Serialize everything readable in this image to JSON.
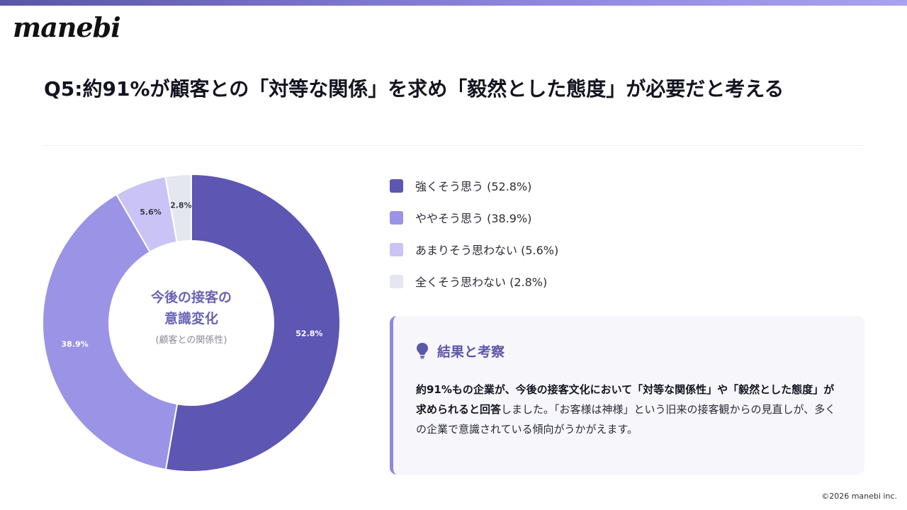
{
  "brand": {
    "logo_text": "manebi",
    "accent": "#5b55a8"
  },
  "page": {
    "title": "Q5:約91%が顧客との「対等な関係」を求め「毅然とした態度」が必要だと考える"
  },
  "chart_data": {
    "type": "pie",
    "donut": true,
    "categories": [
      "強くそう思う",
      "ややそう思う",
      "あまりそう思わない",
      "全くそう思わない"
    ],
    "values": [
      52.8,
      38.9,
      5.6,
      2.8
    ],
    "unit": "%",
    "data_labels": [
      "52.8%",
      "38.9%",
      "5.6%",
      "2.8%"
    ],
    "colors": [
      "#5d56b3",
      "#9b93e6",
      "#c9c4f5",
      "#e4e7ef"
    ],
    "center_title_lines": [
      "今後の接客の",
      "意識変化"
    ],
    "center_subtitle": "(顧客との関係性)",
    "legend_position": "right",
    "legend": [
      "強くそう思う (52.8%)",
      "ややそう思う (38.9%)",
      "あまりそう思わない (5.6%)",
      "全くそう思わない (2.8%)"
    ]
  },
  "insight": {
    "icon": "lightbulb-icon",
    "title": "結果と考察",
    "body_bold": "約91%もの企業が、今後の接客文化において「対等な関係性」や「毅然とした態度」が求められると回答",
    "body_rest": "しました。「お客様は神様」という旧来の接客観からの見直しが、多くの企業で意識されている傾向がうかがえます。"
  },
  "footer": {
    "copyright": "©2026 manebi inc."
  }
}
